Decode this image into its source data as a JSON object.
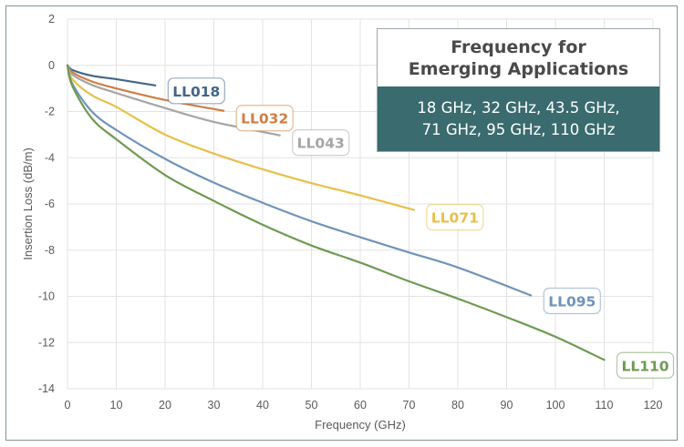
{
  "chart_data": {
    "type": "line",
    "title": "",
    "xlabel": "Frequency (GHz)",
    "ylabel": "Insertion Loss (dB/m)",
    "xlim": [
      0,
      120
    ],
    "ylim": [
      -14,
      2
    ],
    "xticks": [
      0,
      10,
      20,
      30,
      40,
      50,
      60,
      70,
      80,
      90,
      100,
      110,
      120
    ],
    "yticks": [
      2,
      0,
      -2,
      -4,
      -6,
      -8,
      -10,
      -12,
      -14
    ],
    "grid": true,
    "legend": "inline-labels",
    "series": [
      {
        "name": "LL018",
        "color": "#44668a",
        "x": [
          0,
          1,
          5,
          10,
          18
        ],
        "y": [
          0,
          -0.2,
          -0.45,
          -0.6,
          -0.87
        ]
      },
      {
        "name": "LL032",
        "color": "#d07d44",
        "x": [
          0,
          1,
          5,
          10,
          20,
          32
        ],
        "y": [
          0,
          -0.3,
          -0.7,
          -1.0,
          -1.5,
          -1.97
        ]
      },
      {
        "name": "LL043",
        "color": "#a5a5a5",
        "x": [
          0,
          1,
          5,
          10,
          20,
          30,
          43.5
        ],
        "y": [
          0,
          -0.4,
          -0.85,
          -1.2,
          -1.85,
          -2.45,
          -3.03
        ]
      },
      {
        "name": "LL071",
        "color": "#e8bf4a",
        "x": [
          0,
          1,
          5,
          10,
          20,
          30,
          40,
          50,
          60,
          71
        ],
        "y": [
          0,
          -0.6,
          -1.3,
          -1.8,
          -3.0,
          -3.82,
          -4.5,
          -5.1,
          -5.63,
          -6.26
        ]
      },
      {
        "name": "LL095",
        "color": "#6f94bb",
        "x": [
          0,
          1,
          5,
          10,
          20,
          30,
          40,
          50,
          60,
          70,
          80,
          95
        ],
        "y": [
          0,
          -0.8,
          -2.0,
          -2.8,
          -4.05,
          -5.08,
          -5.95,
          -6.75,
          -7.44,
          -8.1,
          -8.75,
          -9.96
        ]
      },
      {
        "name": "LL110",
        "color": "#6f9a52",
        "x": [
          0,
          1,
          5,
          10,
          20,
          30,
          40,
          50,
          60,
          70,
          80,
          90,
          100,
          110
        ],
        "y": [
          0,
          -0.9,
          -2.3,
          -3.2,
          -4.75,
          -5.87,
          -6.9,
          -7.8,
          -8.54,
          -9.35,
          -10.1,
          -10.9,
          -11.75,
          -12.75
        ]
      }
    ]
  },
  "info_box": {
    "title_line1": "Frequency for",
    "title_line2": "Emerging Applications",
    "body_line1": "18 GHz, 32 GHz, 43.5 GHz,",
    "body_line2": "71 GHz, 95 GHz, 110 GHz",
    "header_bg": "#ffffff",
    "body_bg": "#3a6b6e"
  }
}
